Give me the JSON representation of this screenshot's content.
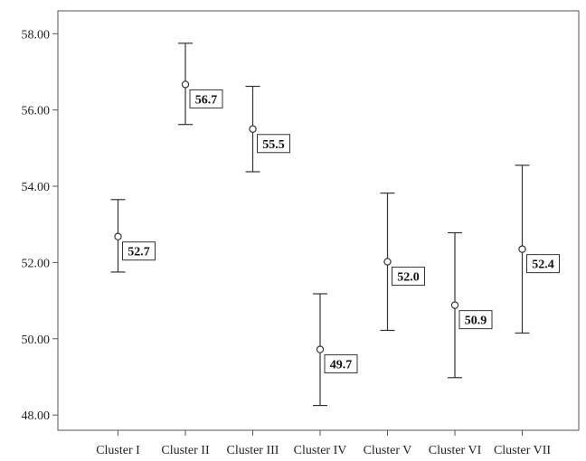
{
  "chart_data": {
    "type": "error-bar",
    "title": "",
    "xlabel": "",
    "ylabel": "",
    "categories": [
      "Cluster I",
      "Cluster II",
      "Cluster III",
      "Cluster IV",
      "Cluster V",
      "Cluster VI",
      "Cluster VII"
    ],
    "means": [
      52.68,
      56.67,
      55.5,
      49.72,
      52.02,
      50.88,
      52.35
    ],
    "lower": [
      51.75,
      55.62,
      54.38,
      48.25,
      50.22,
      48.98,
      50.15
    ],
    "upper": [
      53.65,
      57.75,
      56.62,
      51.18,
      53.82,
      52.78,
      54.55
    ],
    "data_labels": [
      "52.7",
      "56.7",
      "55.5",
      "49.7",
      "52.0",
      "50.9",
      "52.4"
    ],
    "yticks": [
      "48.00",
      "50.00",
      "52.00",
      "54.00",
      "56.00",
      "58.00"
    ],
    "yticks_values": [
      48,
      50,
      52,
      54,
      56,
      58
    ],
    "ylim": [
      47.6,
      58.6
    ],
    "grid": false,
    "marker": "open-circle",
    "color": "#333333"
  }
}
